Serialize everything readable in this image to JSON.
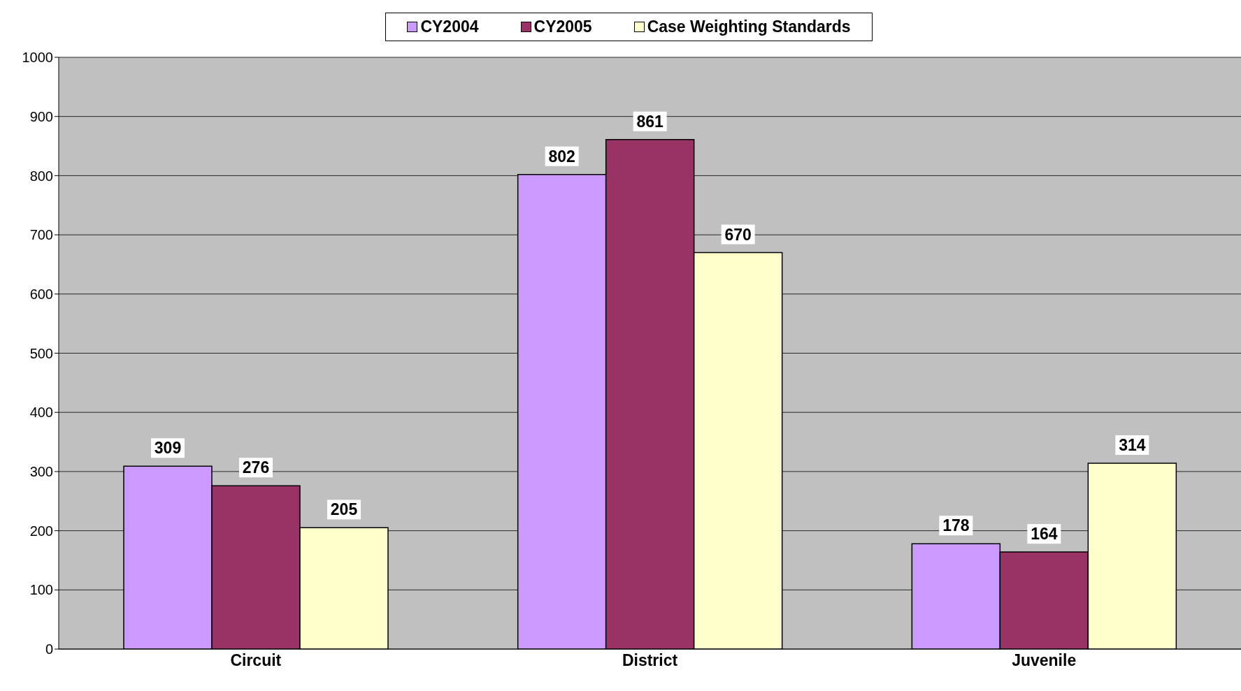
{
  "chart_data": {
    "type": "bar",
    "categories": [
      "Circuit",
      "District",
      "Juvenile"
    ],
    "series": [
      {
        "name": "CY2004",
        "color": "#cc99ff",
        "values": [
          309,
          802,
          178
        ]
      },
      {
        "name": "CY2005",
        "color": "#993366",
        "values": [
          276,
          861,
          164
        ]
      },
      {
        "name": "Case Weighting Standards",
        "color": "#ffffcc",
        "values": [
          205,
          670,
          314
        ]
      }
    ],
    "ylim": [
      0,
      1000
    ],
    "yticks": [
      0,
      100,
      200,
      300,
      400,
      500,
      600,
      700,
      800,
      900,
      1000
    ],
    "grid": "y",
    "legend": "top",
    "data_labels": true
  }
}
